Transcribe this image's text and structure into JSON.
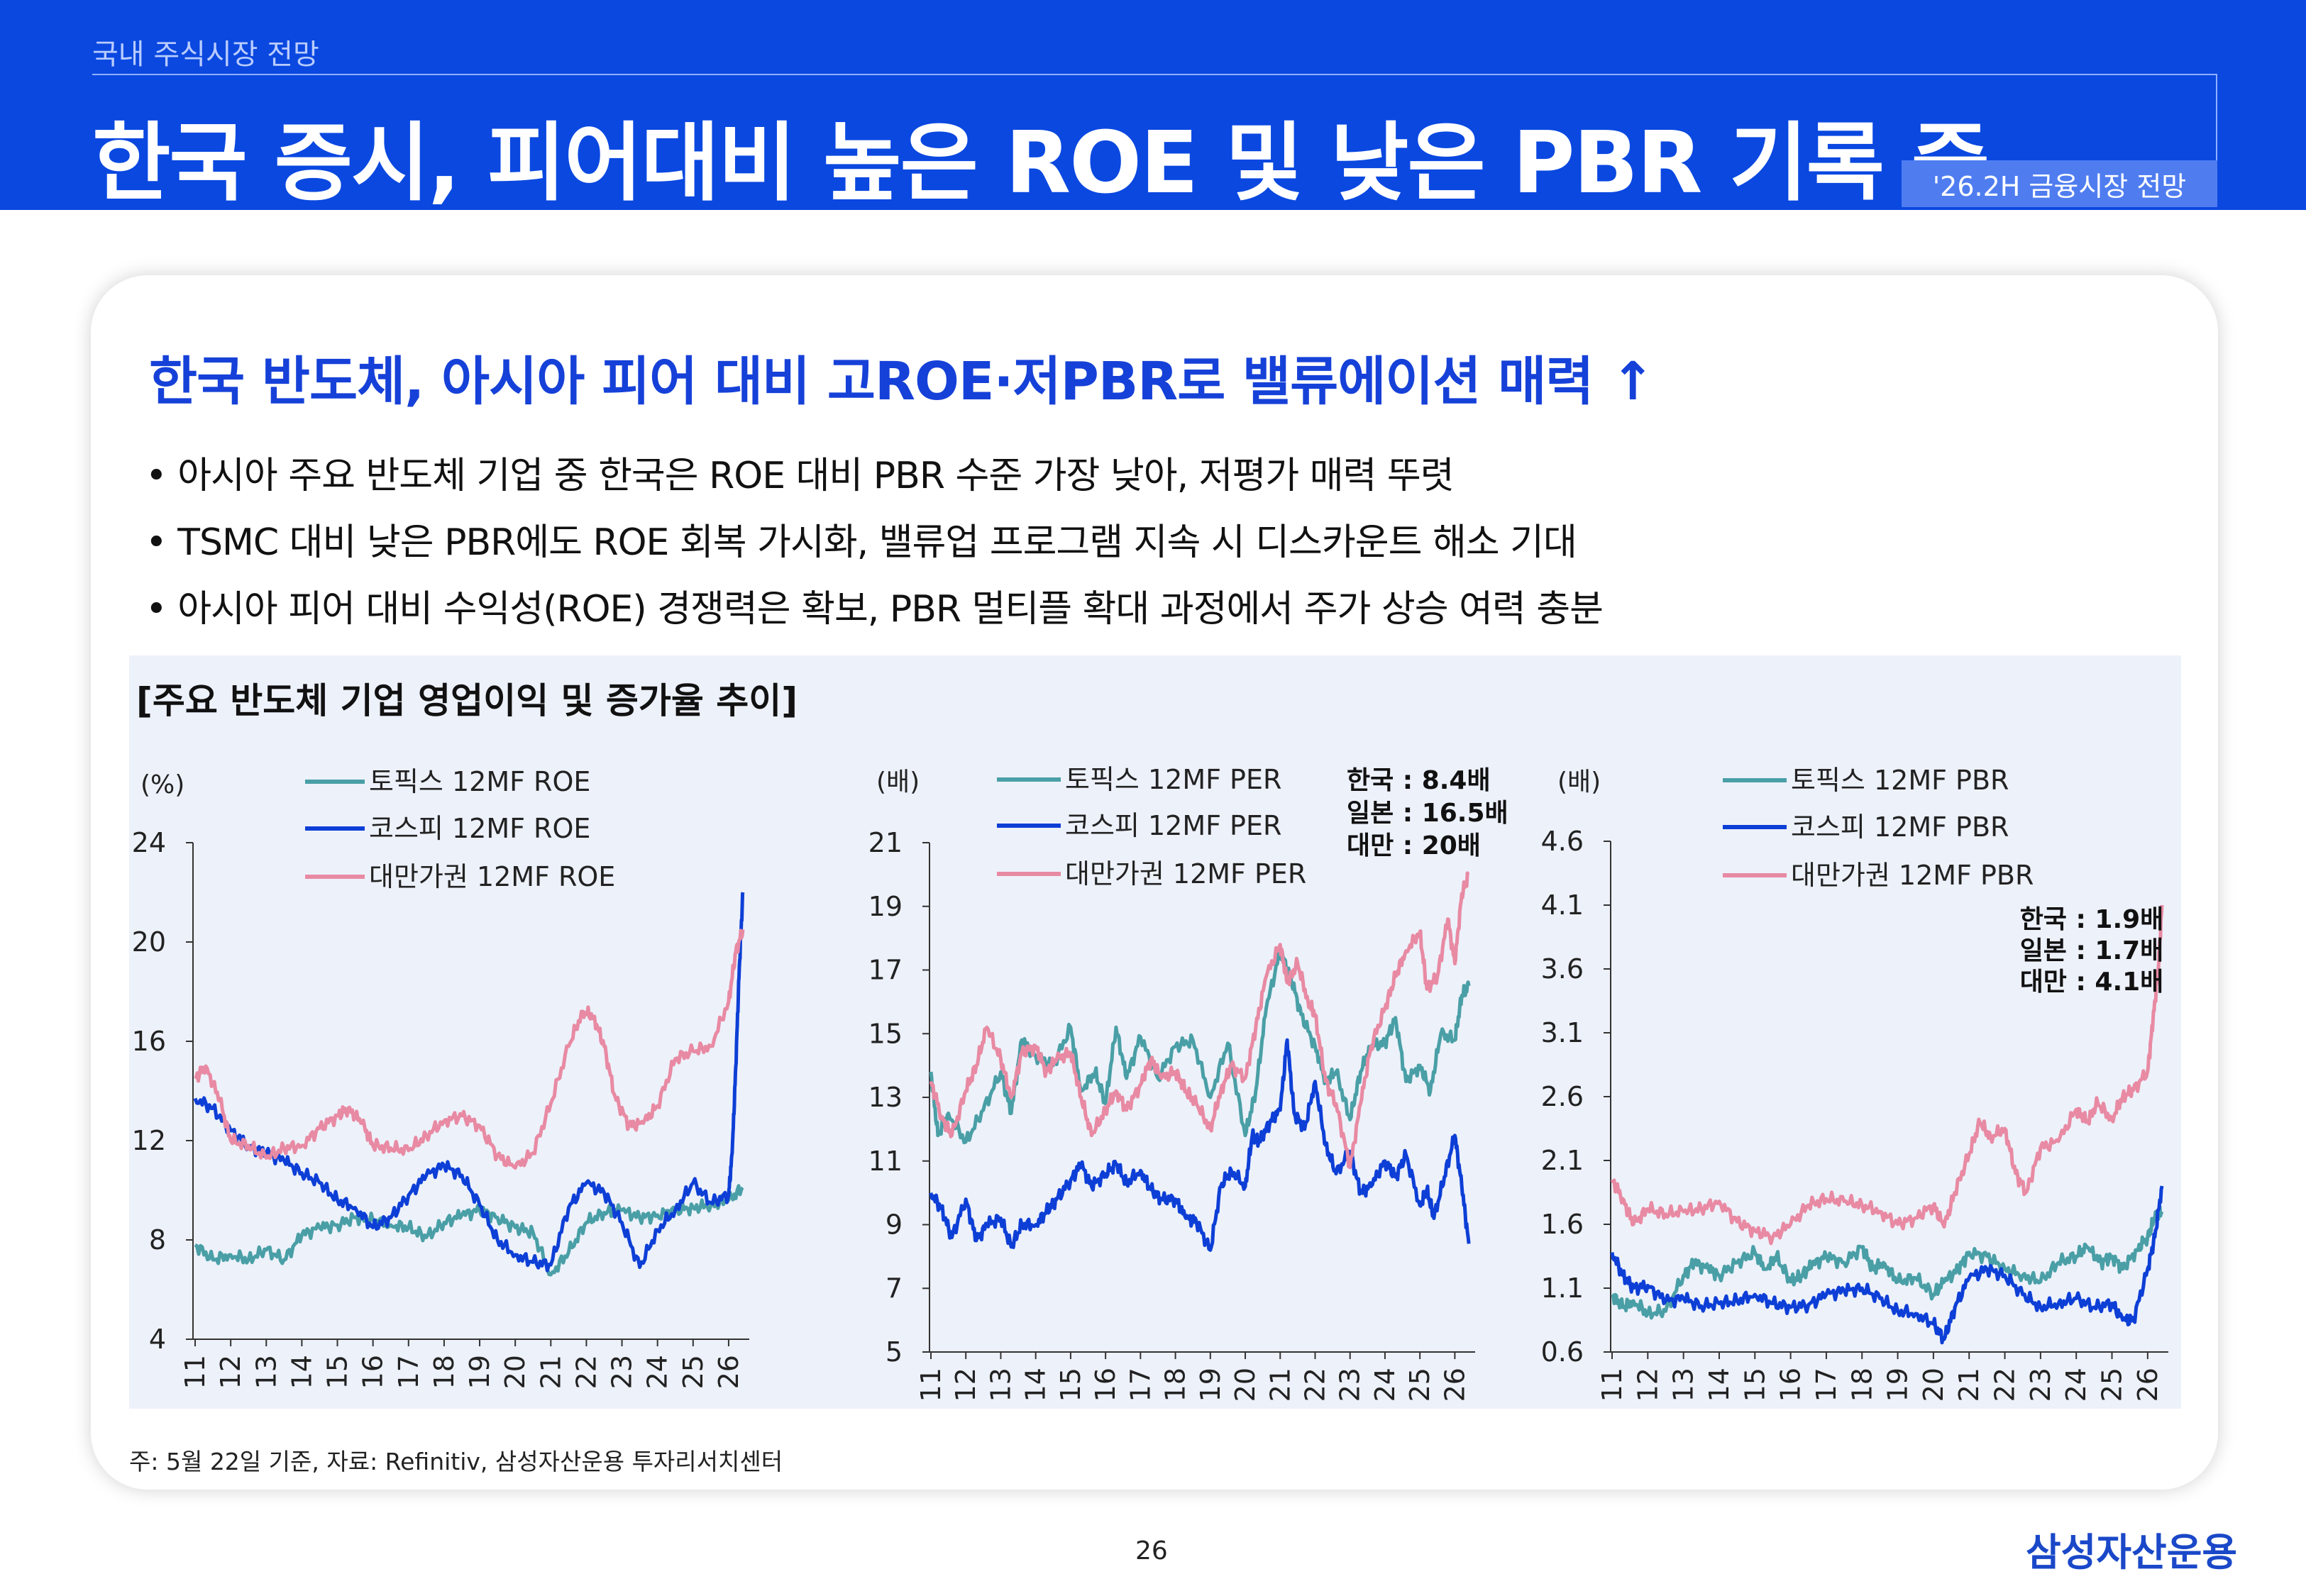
{
  "header": {
    "section": "국내 주식시장 전망",
    "title": "한국 증시, 피어대비 높은 ROE 및 낮은 PBR 기록 중",
    "badge": "'26.2H 금융시장 전망"
  },
  "subheading": "한국 반도체, 아시아 피어 대비 고ROE·저PBR로 밸류에이션 매력 ↑",
  "bullets": [
    "• 아시아 주요 반도체 기업 중 한국은 ROE 대비 PBR 수준 가장 낮아, 저평가 매력 뚜렷",
    "• TSMC 대비 낮은 PBR에도 ROE 회복 가시화, 밸류업 프로그램 지속 시 디스카운트 해소 기대",
    "• 아시아 피어 대비 수익성(ROE) 경쟁력은 확보, PBR 멀티플 확대 과정에서 주가 상승 여력 충분"
  ],
  "chart_title": "[주요 반도체 기업 영업이익 및 증가율 추이]",
  "footnote": "주: 5월 22일 기준, 자료: Refinitiv, 삼성자산운용 투자리서치센터",
  "page_number": "26",
  "logo": "삼성자산운용",
  "colors": {
    "topix": "#4a9fa6",
    "kospi": "#0d3fd6",
    "taiwan": "#e88aa3",
    "header": "#0a48e0",
    "accent": "#1641d8"
  },
  "chart_data": [
    {
      "type": "line",
      "unit_label": "(%)",
      "x_ticks": [
        "11",
        "12",
        "13",
        "14",
        "15",
        "16",
        "17",
        "18",
        "19",
        "20",
        "21",
        "22",
        "23",
        "24",
        "25",
        "26"
      ],
      "ylim": [
        4,
        24
      ],
      "y_ticks": [
        "4",
        "8",
        "12",
        "16",
        "20",
        "24"
      ],
      "series": [
        {
          "name": "토픽스 12MF ROE",
          "color": "#4a9fa6",
          "x": [
            2011.0,
            2011.5,
            2012.0,
            2012.5,
            2013.0,
            2013.5,
            2014.0,
            2014.5,
            2015.0,
            2015.5,
            2016.0,
            2016.5,
            2017.0,
            2017.5,
            2018.0,
            2018.5,
            2019.0,
            2019.5,
            2020.0,
            2020.5,
            2021.0,
            2021.5,
            2022.0,
            2022.5,
            2023.0,
            2023.5,
            2024.0,
            2024.5,
            2025.0,
            2025.5,
            2026.0,
            2026.4
          ],
          "values": [
            7.8,
            7.2,
            7.4,
            7.2,
            7.6,
            7.2,
            8.2,
            8.5,
            8.6,
            8.9,
            8.8,
            8.6,
            8.5,
            8.1,
            8.7,
            9.0,
            9.2,
            8.9,
            8.5,
            8.3,
            6.6,
            7.5,
            8.7,
            9.1,
            9.2,
            8.9,
            9.0,
            9.2,
            9.3,
            9.4,
            9.6,
            10.1
          ]
        },
        {
          "name": "코스피 12MF ROE",
          "color": "#0d3fd6",
          "x": [
            2011.0,
            2011.5,
            2012.0,
            2012.5,
            2013.0,
            2013.5,
            2014.0,
            2014.5,
            2015.0,
            2015.5,
            2016.0,
            2016.5,
            2017.0,
            2017.5,
            2018.0,
            2018.5,
            2019.0,
            2019.5,
            2020.0,
            2020.5,
            2021.0,
            2021.5,
            2022.0,
            2022.5,
            2023.0,
            2023.5,
            2024.0,
            2024.5,
            2025.0,
            2025.5,
            2026.0,
            2026.1,
            2026.2,
            2026.3,
            2026.4
          ],
          "values": [
            13.7,
            13.3,
            12.4,
            11.8,
            11.5,
            11.2,
            10.7,
            10.3,
            9.6,
            9.3,
            8.5,
            8.9,
            9.8,
            10.6,
            11.0,
            10.6,
            9.4,
            8.0,
            7.4,
            7.1,
            7.0,
            9.3,
            10.3,
            9.9,
            8.7,
            6.9,
            8.4,
            9.2,
            10.3,
            9.5,
            9.8,
            11.5,
            15.0,
            19.0,
            22.0
          ]
        },
        {
          "name": "대만가권 12MF ROE",
          "color": "#e88aa3",
          "x": [
            2011.0,
            2011.3,
            2011.7,
            2012.0,
            2012.5,
            2013.0,
            2013.5,
            2014.0,
            2014.5,
            2015.0,
            2015.3,
            2015.7,
            2016.0,
            2016.5,
            2017.0,
            2017.5,
            2018.0,
            2018.5,
            2019.0,
            2019.5,
            2020.0,
            2020.5,
            2021.0,
            2021.5,
            2021.9,
            2022.2,
            2022.5,
            2022.8,
            2023.2,
            2023.6,
            2024.0,
            2024.5,
            2025.0,
            2025.5,
            2026.0,
            2026.2,
            2026.4
          ],
          "values": [
            14.5,
            15.0,
            13.6,
            12.0,
            11.8,
            11.3,
            11.7,
            11.8,
            12.5,
            13.0,
            13.3,
            12.7,
            11.8,
            11.7,
            11.6,
            12.2,
            12.8,
            13.0,
            12.6,
            11.4,
            10.9,
            11.5,
            13.5,
            15.8,
            17.2,
            17.0,
            15.8,
            13.8,
            12.6,
            12.7,
            13.4,
            15.3,
            15.6,
            15.8,
            17.6,
            19.6,
            20.5
          ]
        }
      ]
    },
    {
      "type": "line",
      "unit_label": "(배)",
      "x_ticks": [
        "11",
        "12",
        "13",
        "14",
        "15",
        "16",
        "17",
        "18",
        "19",
        "20",
        "21",
        "22",
        "23",
        "24",
        "25",
        "26"
      ],
      "ylim": [
        5,
        21
      ],
      "y_ticks": [
        "5",
        "7",
        "9",
        "11",
        "13",
        "15",
        "17",
        "19",
        "21"
      ],
      "annotation": [
        "한국 : 8.4배",
        "일본 : 16.5배",
        "대만 : 20배"
      ],
      "series": [
        {
          "name": "토픽스 12MF PER",
          "color": "#4a9fa6",
          "x": [
            2011.0,
            2011.2,
            2011.5,
            2012.0,
            2012.5,
            2013.0,
            2013.3,
            2013.6,
            2014.0,
            2014.5,
            2015.0,
            2015.3,
            2015.7,
            2016.0,
            2016.3,
            2016.6,
            2017.0,
            2017.5,
            2018.0,
            2018.5,
            2019.0,
            2019.5,
            2020.0,
            2020.3,
            2020.6,
            2021.0,
            2021.3,
            2021.6,
            2022.0,
            2022.3,
            2022.6,
            2023.0,
            2023.3,
            2023.6,
            2024.0,
            2024.3,
            2024.6,
            2025.0,
            2025.3,
            2025.6,
            2026.0,
            2026.2,
            2026.4
          ],
          "values": [
            13.8,
            11.8,
            12.5,
            11.6,
            12.6,
            13.8,
            12.5,
            14.8,
            14.3,
            14.0,
            15.2,
            13.2,
            13.8,
            12.8,
            15.2,
            13.6,
            14.9,
            13.6,
            14.6,
            14.8,
            13.0,
            14.7,
            11.8,
            13.2,
            15.8,
            17.6,
            16.8,
            15.6,
            14.6,
            13.5,
            13.8,
            12.3,
            13.8,
            14.6,
            14.7,
            15.5,
            13.5,
            14.0,
            13.2,
            15.0,
            14.8,
            16.2,
            16.5
          ]
        },
        {
          "name": "코스피 12MF PER",
          "color": "#0d3fd6",
          "x": [
            2011.0,
            2011.3,
            2011.6,
            2012.0,
            2012.3,
            2012.6,
            2013.0,
            2013.3,
            2013.6,
            2014.0,
            2014.3,
            2014.6,
            2015.0,
            2015.3,
            2015.6,
            2016.0,
            2016.3,
            2016.6,
            2017.0,
            2017.3,
            2017.6,
            2018.0,
            2018.3,
            2018.6,
            2019.0,
            2019.3,
            2019.6,
            2020.0,
            2020.2,
            2020.4,
            2020.7,
            2021.0,
            2021.2,
            2021.4,
            2021.7,
            2022.0,
            2022.3,
            2022.6,
            2023.0,
            2023.3,
            2023.6,
            2024.0,
            2024.3,
            2024.6,
            2025.0,
            2025.2,
            2025.4,
            2025.7,
            2026.0,
            2026.2,
            2026.4
          ],
          "values": [
            10.0,
            9.5,
            8.6,
            9.8,
            8.5,
            9.0,
            9.2,
            8.3,
            9.0,
            9.0,
            9.4,
            9.8,
            10.4,
            10.9,
            10.2,
            10.6,
            10.9,
            10.3,
            10.7,
            10.1,
            9.8,
            9.8,
            9.2,
            9.1,
            8.2,
            10.2,
            10.7,
            10.2,
            11.8,
            11.6,
            12.2,
            12.6,
            14.8,
            12.5,
            12.0,
            13.5,
            11.5,
            10.6,
            11.3,
            10.0,
            10.2,
            11.0,
            10.5,
            11.2,
            9.6,
            10.1,
            9.2,
            10.5,
            11.8,
            10.2,
            8.4
          ]
        },
        {
          "name": "대만가권 12MF PER",
          "color": "#e88aa3",
          "x": [
            2011.0,
            2011.3,
            2011.6,
            2012.0,
            2012.3,
            2012.6,
            2013.0,
            2013.3,
            2013.6,
            2014.0,
            2014.3,
            2014.6,
            2015.0,
            2015.3,
            2015.6,
            2016.0,
            2016.3,
            2016.6,
            2017.0,
            2017.3,
            2017.6,
            2018.0,
            2018.3,
            2018.6,
            2019.0,
            2019.3,
            2019.6,
            2020.0,
            2020.3,
            2020.6,
            2021.0,
            2021.2,
            2021.5,
            2021.8,
            2022.0,
            2022.3,
            2022.6,
            2023.0,
            2023.3,
            2023.6,
            2024.0,
            2024.3,
            2024.6,
            2025.0,
            2025.2,
            2025.5,
            2025.8,
            2026.0,
            2026.2,
            2026.4
          ],
          "values": [
            13.5,
            12.4,
            11.8,
            13.2,
            14.0,
            15.2,
            14.2,
            13.0,
            14.4,
            14.6,
            13.8,
            14.2,
            14.4,
            13.0,
            11.8,
            12.6,
            13.2,
            12.6,
            13.4,
            14.2,
            13.6,
            13.8,
            13.2,
            12.8,
            12.0,
            13.2,
            14.0,
            13.6,
            15.2,
            16.8,
            17.8,
            16.6,
            17.2,
            16.0,
            15.6,
            13.5,
            12.8,
            10.8,
            12.8,
            14.6,
            15.8,
            16.8,
            17.6,
            18.2,
            16.4,
            16.8,
            18.6,
            17.2,
            19.4,
            20.0
          ]
        }
      ]
    },
    {
      "type": "line",
      "unit_label": "(배)",
      "x_ticks": [
        "11",
        "12",
        "13",
        "14",
        "15",
        "16",
        "17",
        "18",
        "19",
        "20",
        "21",
        "22",
        "23",
        "24",
        "25",
        "26"
      ],
      "ylim": [
        0.6,
        4.6
      ],
      "y_ticks": [
        "0.6",
        "1.1",
        "1.6",
        "2.1",
        "2.6",
        "3.1",
        "3.6",
        "4.1",
        "4.6"
      ],
      "annotation": [
        "한국 : 1.9배",
        "일본 : 1.7배",
        "대만 : 4.1배"
      ],
      "series": [
        {
          "name": "토픽스 12MF PBR",
          "color": "#4a9fa6",
          "x": [
            2011.0,
            2011.3,
            2011.6,
            2012.0,
            2012.5,
            2013.0,
            2013.3,
            2013.7,
            2014.0,
            2014.5,
            2015.0,
            2015.3,
            2015.6,
            2016.0,
            2016.3,
            2016.6,
            2017.0,
            2017.5,
            2018.0,
            2018.3,
            2018.6,
            2019.0,
            2019.5,
            2020.0,
            2020.3,
            2020.7,
            2021.0,
            2021.5,
            2022.0,
            2022.5,
            2023.0,
            2023.5,
            2024.0,
            2024.3,
            2024.7,
            2025.0,
            2025.3,
            2025.7,
            2026.0,
            2026.2,
            2026.4
          ],
          "values": [
            1.05,
            0.95,
            1.0,
            0.9,
            0.92,
            1.2,
            1.3,
            1.25,
            1.2,
            1.3,
            1.38,
            1.25,
            1.35,
            1.15,
            1.2,
            1.28,
            1.35,
            1.3,
            1.42,
            1.25,
            1.3,
            1.15,
            1.18,
            1.05,
            1.15,
            1.25,
            1.38,
            1.35,
            1.25,
            1.2,
            1.15,
            1.3,
            1.35,
            1.42,
            1.3,
            1.35,
            1.25,
            1.4,
            1.5,
            1.65,
            1.7
          ]
        },
        {
          "name": "코스피 12MF PBR",
          "color": "#0d3fd6",
          "x": [
            2011.0,
            2011.3,
            2011.6,
            2012.0,
            2012.5,
            2013.0,
            2013.5,
            2014.0,
            2014.5,
            2015.0,
            2015.5,
            2016.0,
            2016.5,
            2017.0,
            2017.5,
            2018.0,
            2018.5,
            2019.0,
            2019.5,
            2020.0,
            2020.3,
            2020.6,
            2021.0,
            2021.5,
            2022.0,
            2022.5,
            2023.0,
            2023.5,
            2024.0,
            2024.5,
            2025.0,
            2025.3,
            2025.6,
            2026.0,
            2026.2,
            2026.4
          ],
          "values": [
            1.38,
            1.2,
            1.1,
            1.12,
            1.0,
            1.02,
            0.96,
            0.98,
            1.0,
            1.05,
            0.98,
            0.95,
            0.97,
            1.05,
            1.08,
            1.1,
            1.02,
            0.92,
            0.9,
            0.82,
            0.7,
            0.95,
            1.18,
            1.25,
            1.2,
            1.05,
            0.95,
            0.98,
            1.02,
            0.95,
            0.98,
            0.85,
            0.85,
            1.25,
            1.5,
            1.9
          ]
        },
        {
          "name": "대만가권 12MF PBR",
          "color": "#e88aa3",
          "x": [
            2011.0,
            2011.3,
            2011.6,
            2012.0,
            2012.5,
            2013.0,
            2013.5,
            2014.0,
            2014.5,
            2015.0,
            2015.5,
            2016.0,
            2016.5,
            2017.0,
            2017.5,
            2018.0,
            2018.5,
            2019.0,
            2019.5,
            2020.0,
            2020.3,
            2020.6,
            2021.0,
            2021.3,
            2021.6,
            2022.0,
            2022.3,
            2022.6,
            2023.0,
            2023.5,
            2024.0,
            2024.3,
            2024.6,
            2025.0,
            2025.3,
            2025.6,
            2026.0,
            2026.15,
            2026.3,
            2026.4
          ],
          "values": [
            1.95,
            1.8,
            1.6,
            1.72,
            1.68,
            1.7,
            1.72,
            1.78,
            1.62,
            1.55,
            1.5,
            1.6,
            1.75,
            1.8,
            1.78,
            1.75,
            1.7,
            1.6,
            1.65,
            1.75,
            1.58,
            1.85,
            2.15,
            2.4,
            2.28,
            2.35,
            2.0,
            1.85,
            2.2,
            2.25,
            2.5,
            2.4,
            2.55,
            2.42,
            2.6,
            2.65,
            2.8,
            3.2,
            3.6,
            4.1
          ]
        }
      ]
    }
  ]
}
